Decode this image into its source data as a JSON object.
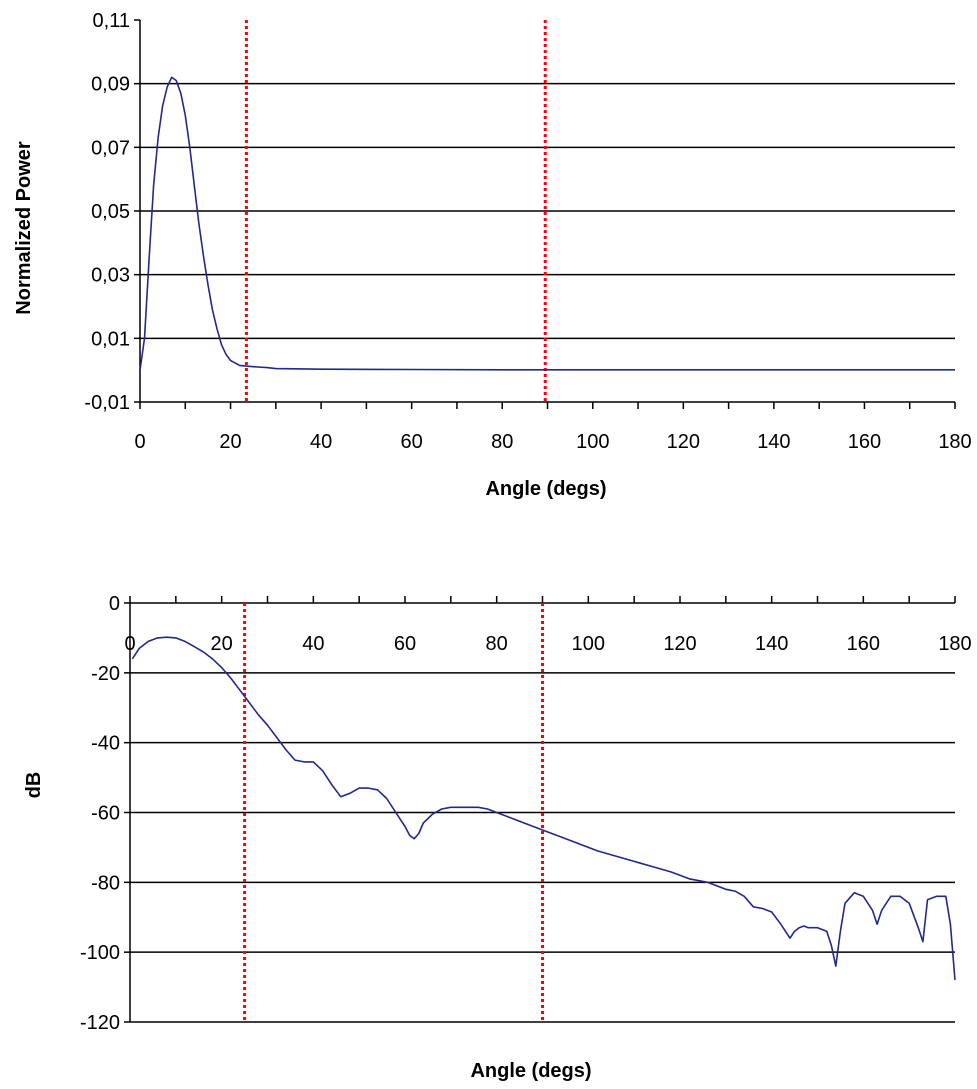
{
  "chart_data": [
    {
      "type": "line",
      "xlabel": "Angle (degs)",
      "ylabel": "Normalized Power",
      "xlim": [
        0,
        180
      ],
      "ylim": [
        -0.01,
        0.11
      ],
      "xticks": [
        0,
        20,
        40,
        60,
        80,
        100,
        120,
        140,
        160,
        180
      ],
      "xtick_labels": [
        "0",
        "20",
        "40",
        "60",
        "80",
        "100",
        "120",
        "140",
        "160",
        "180"
      ],
      "yticks": [
        -0.01,
        0.01,
        0.03,
        0.05,
        0.07,
        0.09,
        0.11
      ],
      "ytick_labels": [
        "-0,01",
        "0,01",
        "0,03",
        "0,05",
        "0,07",
        "0,09",
        "0,11"
      ],
      "grid": "horizontal",
      "reference_lines_x": [
        23.5,
        89.5
      ],
      "colors": {
        "series": "#1f2a8c",
        "reference": "#ff0000",
        "grid": "#000000"
      },
      "series": [
        {
          "x": [
            0,
            1,
            2,
            3,
            4,
            5,
            6,
            7,
            8,
            9,
            10,
            11,
            12,
            13,
            14,
            15,
            16,
            17,
            18,
            19,
            20,
            22,
            24,
            26,
            28,
            30,
            40,
            60,
            80,
            100,
            120,
            140,
            160,
            180
          ],
          "y": [
            0.0,
            0.01,
            0.035,
            0.058,
            0.073,
            0.083,
            0.089,
            0.092,
            0.091,
            0.087,
            0.08,
            0.07,
            0.058,
            0.046,
            0.036,
            0.027,
            0.019,
            0.013,
            0.008,
            0.005,
            0.003,
            0.0015,
            0.0012,
            0.001,
            0.0008,
            0.0005,
            0.0003,
            0.0002,
            0.0001,
            0.0001,
            0.0001,
            0.0001,
            0.0001,
            0.0001
          ]
        }
      ]
    },
    {
      "type": "line",
      "xlabel": "Angle (degs)",
      "ylabel": "dB",
      "xlim": [
        0,
        180
      ],
      "ylim": [
        -120,
        0
      ],
      "xticks": [
        0,
        20,
        40,
        60,
        80,
        100,
        120,
        140,
        160,
        180
      ],
      "xtick_labels": [
        "0",
        "20",
        "40",
        "60",
        "80",
        "100",
        "120",
        "140",
        "160",
        "180"
      ],
      "yticks": [
        -120,
        -100,
        -80,
        -60,
        -40,
        -20,
        0
      ],
      "ytick_labels": [
        "-120",
        "-100",
        "-80",
        "-60",
        "-40",
        "-20",
        "0"
      ],
      "grid": "horizontal",
      "reference_lines_x": [
        25,
        90
      ],
      "colors": {
        "series": "#1f2a8c",
        "reference": "#ff0000",
        "grid": "#000000"
      },
      "series": [
        {
          "x": [
            0.5,
            2,
            4,
            6,
            8,
            10,
            12,
            14,
            16,
            18,
            20,
            22,
            24,
            26,
            28,
            30,
            32,
            34,
            36,
            38,
            40,
            42,
            44,
            46,
            48,
            50,
            52,
            54,
            56,
            58,
            60,
            61,
            62,
            63,
            64,
            66,
            68,
            70,
            72,
            74,
            76,
            78,
            80,
            84,
            88,
            90,
            94,
            98,
            102,
            106,
            110,
            114,
            118,
            122,
            126,
            130,
            132,
            134,
            136,
            138,
            140,
            142,
            144,
            145,
            146,
            147,
            148,
            150,
            152,
            153,
            154,
            155,
            156,
            158,
            160,
            162,
            163,
            164,
            166,
            168,
            170,
            172,
            173,
            174,
            176,
            178,
            179,
            180
          ],
          "y": [
            -16,
            -13,
            -11,
            -10,
            -9.8,
            -10,
            -11,
            -12.5,
            -14,
            -16,
            -18.5,
            -21.5,
            -25,
            -28.5,
            -32,
            -35,
            -38.5,
            -42,
            -45,
            -45.5,
            -45.5,
            -48,
            -52,
            -55.5,
            -54.5,
            -53,
            -53,
            -53.5,
            -56,
            -60,
            -64,
            -66.5,
            -67.5,
            -66,
            -63,
            -60.5,
            -59,
            -58.5,
            -58.5,
            -58.5,
            -58.5,
            -59,
            -60,
            -62,
            -64,
            -65,
            -67,
            -69,
            -71,
            -72.5,
            -74,
            -75.5,
            -77,
            -79,
            -80,
            -82,
            -82.5,
            -84,
            -87,
            -87.5,
            -88.5,
            -92,
            -96,
            -94,
            -93,
            -92.5,
            -93,
            -93,
            -94,
            -98,
            -104,
            -94,
            -86,
            -83,
            -84,
            -88,
            -92,
            -88,
            -84,
            -84,
            -86,
            -93,
            -97,
            -85,
            -84,
            -84,
            -92,
            -108
          ]
        }
      ]
    }
  ]
}
